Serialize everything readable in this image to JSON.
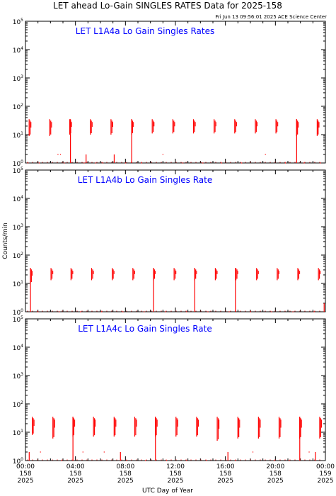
{
  "title": "LET ahead Lo-Gain SINGLES RATES Data for 2025-158",
  "timestamp": "Fri Jun 13 09:56:01 2025 ACE Science Center",
  "xlabel": "UTC Day of Year",
  "ylabel": "Counts/min",
  "colors": {
    "data": "#ff0000",
    "panel_title": "#0000ff",
    "axes": "#000000",
    "background": "#ffffff"
  },
  "y_tick_labels": [
    {
      "base": "10",
      "exp": "0"
    },
    {
      "base": "10",
      "exp": "1"
    },
    {
      "base": "10",
      "exp": "2"
    },
    {
      "base": "10",
      "exp": "3"
    },
    {
      "base": "10",
      "exp": "4"
    },
    {
      "base": "10",
      "exp": "5"
    }
  ],
  "x_tick_labels": [
    {
      "time": "00:00",
      "day": "158",
      "year": "2025"
    },
    {
      "time": "04:00",
      "day": "158",
      "year": "2025"
    },
    {
      "time": "08:00",
      "day": "158",
      "year": "2025"
    },
    {
      "time": "12:00",
      "day": "158",
      "year": "2025"
    },
    {
      "time": "16:00",
      "day": "158",
      "year": "2025"
    },
    {
      "time": "20:00",
      "day": "158",
      "year": "2025"
    },
    {
      "time": "00:00",
      "day": "159",
      "year": "2025"
    }
  ],
  "chart_data": [
    {
      "type": "scatter",
      "title": "LET L1A4a Lo Gain Singles Rates",
      "xlim": [
        0,
        24
      ],
      "ylim": [
        1,
        100000
      ],
      "yscale": "log",
      "bursts": [
        {
          "x": 0.35,
          "lo": 9,
          "hi": 35
        },
        {
          "x": 2.0,
          "lo": 9,
          "hi": 35
        },
        {
          "x": 3.6,
          "lo": 10,
          "hi": 35
        },
        {
          "x": 5.25,
          "lo": 10,
          "hi": 35
        },
        {
          "x": 6.9,
          "lo": 10,
          "hi": 35
        },
        {
          "x": 8.55,
          "lo": 10,
          "hi": 35
        },
        {
          "x": 10.2,
          "lo": 11,
          "hi": 35
        },
        {
          "x": 11.85,
          "lo": 11,
          "hi": 35
        },
        {
          "x": 13.5,
          "lo": 11,
          "hi": 35
        },
        {
          "x": 15.15,
          "lo": 11,
          "hi": 35
        },
        {
          "x": 16.8,
          "lo": 11,
          "hi": 35
        },
        {
          "x": 18.45,
          "lo": 11,
          "hi": 35
        },
        {
          "x": 20.1,
          "lo": 11,
          "hi": 35
        },
        {
          "x": 21.75,
          "lo": 9,
          "hi": 35
        },
        {
          "x": 23.4,
          "lo": 9,
          "hi": 35
        }
      ],
      "spikes": [
        {
          "x": 3.6,
          "hi": 35
        },
        {
          "x": 8.5,
          "hi": 35
        },
        {
          "x": 21.7,
          "hi": 35
        },
        {
          "x": 4.85,
          "hi": 2
        },
        {
          "x": 7.1,
          "hi": 2
        }
      ],
      "dots": [
        {
          "x": 0.2,
          "y": 1
        },
        {
          "x": 1.1,
          "y": 1
        },
        {
          "x": 2.6,
          "y": 2
        },
        {
          "x": 2.8,
          "y": 2
        },
        {
          "x": 3.1,
          "y": 1
        },
        {
          "x": 4.7,
          "y": 1
        },
        {
          "x": 5.6,
          "y": 1
        },
        {
          "x": 6.2,
          "y": 1
        },
        {
          "x": 8.0,
          "y": 1
        },
        {
          "x": 9.3,
          "y": 1
        },
        {
          "x": 11.0,
          "y": 2
        },
        {
          "x": 12.6,
          "y": 1
        },
        {
          "x": 14.2,
          "y": 1
        },
        {
          "x": 15.7,
          "y": 1
        },
        {
          "x": 17.3,
          "y": 1
        },
        {
          "x": 19.2,
          "y": 2
        },
        {
          "x": 20.8,
          "y": 1
        },
        {
          "x": 22.3,
          "y": 1
        },
        {
          "x": 23.6,
          "y": 1
        }
      ]
    },
    {
      "type": "scatter",
      "title": "LET L1A4b Lo Gain Singles Rate",
      "xlim": [
        0,
        24
      ],
      "ylim": [
        1,
        100000
      ],
      "yscale": "log",
      "bursts": [
        {
          "x": 0.45,
          "lo": 10,
          "hi": 35
        },
        {
          "x": 2.1,
          "lo": 13,
          "hi": 35
        },
        {
          "x": 3.7,
          "lo": 13,
          "hi": 35
        },
        {
          "x": 5.35,
          "lo": 13,
          "hi": 35
        },
        {
          "x": 7.0,
          "lo": 13,
          "hi": 35
        },
        {
          "x": 8.65,
          "lo": 13,
          "hi": 35
        },
        {
          "x": 10.3,
          "lo": 13,
          "hi": 35
        },
        {
          "x": 11.95,
          "lo": 13,
          "hi": 35
        },
        {
          "x": 13.6,
          "lo": 13,
          "hi": 35
        },
        {
          "x": 15.25,
          "lo": 13,
          "hi": 35
        },
        {
          "x": 16.9,
          "lo": 13,
          "hi": 35
        },
        {
          "x": 18.55,
          "lo": 13,
          "hi": 35
        },
        {
          "x": 20.2,
          "lo": 13,
          "hi": 35
        },
        {
          "x": 21.85,
          "lo": 13,
          "hi": 35
        },
        {
          "x": 23.5,
          "lo": 13,
          "hi": 35
        }
      ],
      "spikes": [
        {
          "x": 0.4,
          "hi": 35
        },
        {
          "x": 10.25,
          "hi": 35
        },
        {
          "x": 13.55,
          "hi": 35
        },
        {
          "x": 16.8,
          "hi": 35
        },
        {
          "x": 23.9,
          "hi": 2
        }
      ],
      "dots": [
        {
          "x": 1.0,
          "y": 1
        },
        {
          "x": 2.7,
          "y": 1
        },
        {
          "x": 4.4,
          "y": 1
        },
        {
          "x": 6.1,
          "y": 1
        },
        {
          "x": 7.8,
          "y": 1
        },
        {
          "x": 9.5,
          "y": 1
        },
        {
          "x": 11.2,
          "y": 1
        },
        {
          "x": 12.9,
          "y": 1
        },
        {
          "x": 14.6,
          "y": 1
        },
        {
          "x": 16.3,
          "y": 1
        },
        {
          "x": 18.0,
          "y": 1
        },
        {
          "x": 19.7,
          "y": 1
        },
        {
          "x": 21.4,
          "y": 1
        },
        {
          "x": 23.1,
          "y": 1
        }
      ]
    },
    {
      "type": "scatter",
      "title": "LET L1A4c Lo Gain Singles Rate",
      "xlim": [
        0,
        24
      ],
      "ylim": [
        1,
        100000
      ],
      "yscale": "log",
      "bursts": [
        {
          "x": 0.6,
          "lo": 8,
          "hi": 35
        },
        {
          "x": 2.25,
          "lo": 6,
          "hi": 35
        },
        {
          "x": 3.85,
          "lo": 7,
          "hi": 35
        },
        {
          "x": 5.5,
          "lo": 7,
          "hi": 35
        },
        {
          "x": 7.15,
          "lo": 7,
          "hi": 35
        },
        {
          "x": 8.8,
          "lo": 7,
          "hi": 35
        },
        {
          "x": 10.45,
          "lo": 7,
          "hi": 35
        },
        {
          "x": 12.1,
          "lo": 7,
          "hi": 35
        },
        {
          "x": 13.75,
          "lo": 7,
          "hi": 35
        },
        {
          "x": 15.4,
          "lo": 5,
          "hi": 35
        },
        {
          "x": 17.05,
          "lo": 6,
          "hi": 35
        },
        {
          "x": 18.7,
          "lo": 6,
          "hi": 35
        },
        {
          "x": 20.35,
          "lo": 6,
          "hi": 35
        },
        {
          "x": 22.0,
          "lo": 6,
          "hi": 35
        },
        {
          "x": 23.6,
          "lo": 6,
          "hi": 35
        }
      ],
      "spikes": [
        {
          "x": 3.8,
          "hi": 35
        },
        {
          "x": 10.4,
          "hi": 35
        },
        {
          "x": 21.95,
          "hi": 35
        },
        {
          "x": 0.3,
          "hi": 2
        },
        {
          "x": 7.6,
          "hi": 2
        },
        {
          "x": 16.2,
          "hi": 2
        },
        {
          "x": 23.2,
          "hi": 2
        }
      ],
      "dots": [
        {
          "x": 1.2,
          "y": 2
        },
        {
          "x": 2.9,
          "y": 1
        },
        {
          "x": 4.6,
          "y": 2
        },
        {
          "x": 6.3,
          "y": 2
        },
        {
          "x": 8.1,
          "y": 1
        },
        {
          "x": 9.6,
          "y": 1
        },
        {
          "x": 11.3,
          "y": 1
        },
        {
          "x": 12.9,
          "y": 1
        },
        {
          "x": 14.5,
          "y": 1
        },
        {
          "x": 16.8,
          "y": 1
        },
        {
          "x": 18.2,
          "y": 2
        },
        {
          "x": 19.9,
          "y": 1
        },
        {
          "x": 21.1,
          "y": 1
        },
        {
          "x": 22.7,
          "y": 2
        }
      ]
    }
  ]
}
